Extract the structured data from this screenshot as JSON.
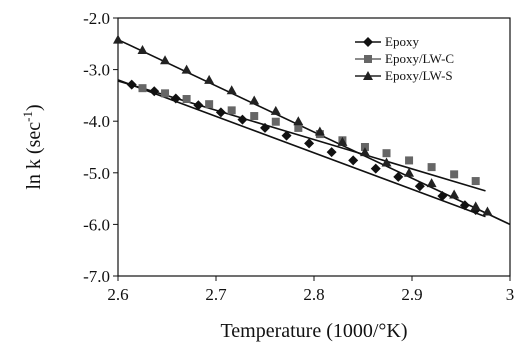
{
  "chart_data": {
    "type": "scatter",
    "title": "",
    "xlabel": "Temperature (1000/°K)",
    "ylabel_main": "ln k (sec",
    "ylabel_sup": "-1",
    "ylabel_close": ")",
    "xlim": [
      2.6,
      3.0
    ],
    "ylim": [
      -7.0,
      -2.0
    ],
    "xticks": [
      2.6,
      2.7,
      2.8,
      2.9,
      3.0
    ],
    "xtick_labels": [
      "2.6",
      "2.7",
      "2.8",
      "2.9",
      "3"
    ],
    "yticks": [
      -2.0,
      -3.0,
      -4.0,
      -5.0,
      -6.0,
      -7.0
    ],
    "ytick_labels": [
      "-2.0",
      "-3.0",
      "-4.0",
      "-5.0",
      "-6.0",
      "-7.0"
    ],
    "grid": false,
    "legend_position": "top-right",
    "series": [
      {
        "name": "Epoxy",
        "marker": "diamond",
        "color": "#111111",
        "x": [
          2.614,
          2.637,
          2.659,
          2.682,
          2.705,
          2.727,
          2.75,
          2.772,
          2.795,
          2.818,
          2.84,
          2.863,
          2.886,
          2.908,
          2.931,
          2.954,
          2.965
        ],
        "y": [
          -3.29,
          -3.42,
          -3.56,
          -3.69,
          -3.83,
          -3.97,
          -4.13,
          -4.28,
          -4.43,
          -4.6,
          -4.76,
          -4.92,
          -5.08,
          -5.26,
          -5.45,
          -5.63,
          -5.72
        ]
      },
      {
        "name": "Epoxy/LW-C",
        "marker": "square",
        "color": "#666666",
        "x": [
          2.625,
          2.648,
          2.67,
          2.693,
          2.716,
          2.739,
          2.761,
          2.784,
          2.806,
          2.829,
          2.852,
          2.874,
          2.897,
          2.92,
          2.943,
          2.965
        ],
        "y": [
          -3.36,
          -3.46,
          -3.57,
          -3.67,
          -3.79,
          -3.9,
          -4.01,
          -4.13,
          -4.25,
          -4.37,
          -4.5,
          -4.62,
          -4.76,
          -4.89,
          -5.03,
          -5.16
        ]
      },
      {
        "name": "Epoxy/LW-S",
        "marker": "triangle",
        "color": "#222222",
        "x": [
          2.6,
          2.625,
          2.648,
          2.67,
          2.693,
          2.716,
          2.739,
          2.761,
          2.784,
          2.806,
          2.829,
          2.852,
          2.874,
          2.897,
          2.92,
          2.943,
          2.965,
          2.977
        ],
        "y": [
          -2.42,
          -2.62,
          -2.82,
          -3.0,
          -3.2,
          -3.4,
          -3.6,
          -3.8,
          -4.0,
          -4.2,
          -4.4,
          -4.6,
          -4.8,
          -5.0,
          -5.2,
          -5.42,
          -5.65,
          -5.75
        ]
      }
    ],
    "trendlines": [
      {
        "series": "Epoxy",
        "x": [
          2.6,
          2.975
        ],
        "y": [
          -3.2,
          -5.85
        ]
      },
      {
        "series": "Epoxy/LW-C",
        "x": [
          2.6,
          2.975
        ],
        "y": [
          -3.22,
          -5.35
        ]
      },
      {
        "series": "Epoxy/LW-S",
        "x": [
          2.6,
          3.0
        ],
        "y": [
          -2.42,
          -6.0
        ]
      }
    ]
  }
}
